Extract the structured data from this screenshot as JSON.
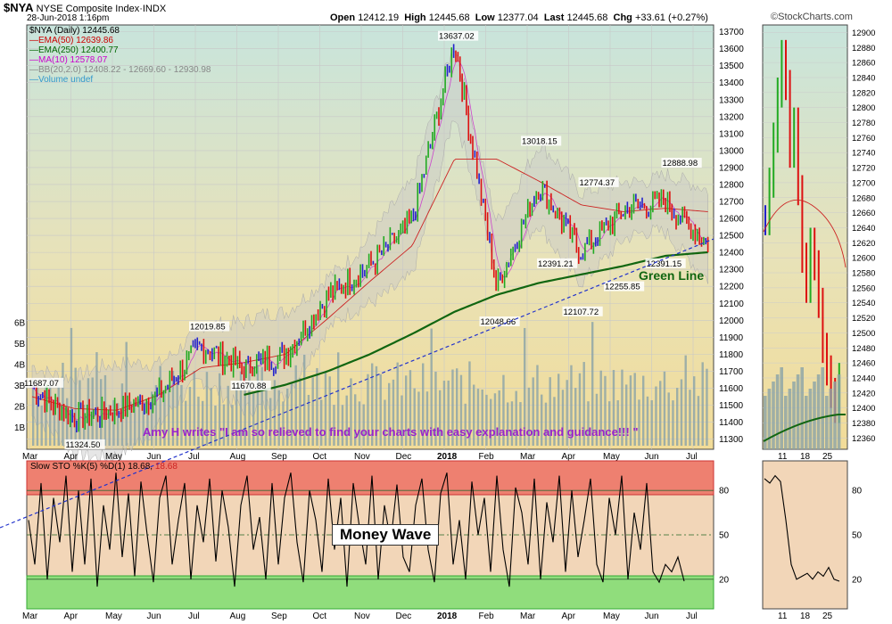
{
  "header": {
    "symbol": "$NYA",
    "name": "NYSE Composite Index",
    "exchange": "INDX",
    "datetime": "28-Jun-2018 1:16pm",
    "open_label": "Open",
    "open": "12412.19",
    "high_label": "High",
    "high": "12445.68",
    "low_label": "Low",
    "low": "12377.04",
    "last_label": "Last",
    "last": "12445.68",
    "chg_label": "Chg",
    "chg": "+33.61 (+0.27%)",
    "brand": "©StockCharts.com"
  },
  "legend": [
    {
      "text": "$NYA (Daily) 12445.68",
      "color": "#000000"
    },
    {
      "text": "EMA(50) 12639.86",
      "color": "#cc0000"
    },
    {
      "text": "EMA(250) 12400.77",
      "color": "#006600"
    },
    {
      "text": "MA(10) 12578.07",
      "color": "#cc00cc"
    },
    {
      "text": "BB(20,2.0) 12408.22 - 12669.60 - 12930.98",
      "color": "#888888"
    },
    {
      "text": "Volume undef",
      "color": "#3399cc"
    }
  ],
  "annotations": {
    "testimonial": "Amy H writes \"I am so relieved to find your charts with easy explanation and guidance!!! \"",
    "green_line": "Green Line",
    "money_wave": "Money Wave",
    "sto_label": "Slow STO %K(5) %D(1) 18.68,",
    "sto_value": "18.68"
  },
  "colors": {
    "up": "#22aa22",
    "down": "#dd1111",
    "neutral": "#2222cc",
    "ema50": "#cc2222",
    "ema250": "#116611",
    "ma10": "#cc44cc",
    "bb_fill": "#c8c8c8",
    "volume": "#8aa3a8",
    "overbought": "#f08070",
    "oversold": "#88dd77"
  },
  "chart_data": [
    {
      "type": "line",
      "title": "$NYA NYSE Composite Index (Daily)",
      "x_labels": [
        "Mar",
        "Apr",
        "May",
        "Jun",
        "Jul",
        "Aug",
        "Sep",
        "Oct",
        "Nov",
        "Dec",
        "2018",
        "Feb",
        "Mar",
        "Apr",
        "May",
        "Jun",
        "Jul"
      ],
      "y_ticks": [
        11300,
        11400,
        11500,
        11600,
        11700,
        11800,
        11900,
        12000,
        12100,
        12200,
        12300,
        12400,
        12500,
        12600,
        12700,
        12800,
        12900,
        13000,
        13100,
        13200,
        13300,
        13400,
        13500,
        13600,
        13700
      ],
      "ylim": [
        11240,
        13740
      ],
      "volume_ticks": [
        "1B",
        "2B",
        "3B",
        "4B",
        "5B",
        "6B"
      ],
      "labeled_points": [
        {
          "label": "11687.07",
          "value": 11687.07,
          "date": "Mar"
        },
        {
          "label": "11324.50",
          "value": 11324.5,
          "date": "Apr"
        },
        {
          "label": "12019.85",
          "value": 12019.85,
          "date": "Jul"
        },
        {
          "label": "11670.88",
          "value": 11670.88,
          "date": "Aug"
        },
        {
          "label": "13637.02",
          "value": 13637.02,
          "date": "Jan"
        },
        {
          "label": "12048.66",
          "value": 12048.66,
          "date": "Feb"
        },
        {
          "label": "13018.15",
          "value": 13018.15,
          "date": "Mar"
        },
        {
          "label": "12391.21",
          "value": 12391.21,
          "date": "Mar"
        },
        {
          "label": "12107.72",
          "value": 12107.72,
          "date": "Apr"
        },
        {
          "label": "12774.37",
          "value": 12774.37,
          "date": "Apr"
        },
        {
          "label": "12255.85",
          "value": 12255.85,
          "date": "May"
        },
        {
          "label": "12391.15",
          "value": 12391.15,
          "date": "Jun"
        },
        {
          "label": "12888.98",
          "value": 12888.98,
          "date": "Jun"
        }
      ],
      "series": [
        {
          "name": "$NYA",
          "months": [
            "Mar",
            "Apr",
            "May",
            "Jun",
            "Jul",
            "Aug",
            "Sep",
            "Oct",
            "Nov",
            "Dec",
            "Jan",
            "Feb",
            "Mar",
            "Apr",
            "May",
            "Jun",
            "Jun 28"
          ],
          "values": [
            11600,
            11420,
            11470,
            11560,
            11850,
            11720,
            11800,
            12140,
            12320,
            12580,
            13637,
            12200,
            12800,
            12400,
            12650,
            12700,
            12445.68
          ]
        },
        {
          "name": "EMA(50)",
          "months": [
            "Mar",
            "Apr",
            "May",
            "Jun",
            "Jul",
            "Aug",
            "Sep",
            "Oct",
            "Nov",
            "Dec",
            "Jan",
            "Feb",
            "Mar",
            "Apr",
            "May",
            "Jun",
            "Jun 28"
          ],
          "values": [
            11550,
            11480,
            11470,
            11560,
            11720,
            11750,
            11800,
            12010,
            12230,
            12440,
            12950,
            12950,
            12820,
            12680,
            12640,
            12660,
            12639.86
          ]
        },
        {
          "name": "EMA(250)",
          "months": [
            "Mar",
            "Apr",
            "May",
            "Jun",
            "Jul",
            "Aug",
            "Sep",
            "Oct",
            "Nov",
            "Dec",
            "Jan",
            "Feb",
            "Mar",
            "Apr",
            "May",
            "Jun",
            "Jun 28"
          ],
          "values": [
            null,
            null,
            null,
            null,
            null,
            11560,
            11620,
            11700,
            11800,
            11920,
            12050,
            12150,
            12220,
            12270,
            12320,
            12380,
            12400.77
          ]
        }
      ]
    },
    {
      "type": "line",
      "title": "Slow STO %K(5) %D(1)",
      "y_ticks": [
        20,
        50,
        80
      ],
      "ylim": [
        0,
        100
      ],
      "overbought": 80,
      "oversold": 20,
      "series": [
        {
          "name": "%K",
          "values": [
            60,
            30,
            85,
            20,
            75,
            45,
            90,
            25,
            80,
            30,
            88,
            15,
            70,
            40,
            92,
            35,
            78,
            22,
            86,
            50,
            18,
            75,
            90,
            30,
            60,
            85,
            20,
            70,
            45,
            88,
            32,
            80,
            55,
            15,
            70,
            90,
            40,
            62,
            20,
            85,
            30,
            75,
            92,
            45,
            18,
            80,
            60,
            25,
            88,
            40,
            75,
            15,
            85,
            55,
            30,
            90,
            20,
            70,
            45,
            84,
            35,
            25,
            70,
            88,
            40,
            18,
            78,
            92,
            30,
            60,
            20,
            86,
            50,
            75,
            25,
            90,
            40,
            15,
            82,
            65,
            30,
            88,
            20,
            72,
            45,
            90,
            25,
            80,
            35,
            60,
            88,
            30,
            18,
            75,
            50,
            90,
            20,
            65,
            40,
            85,
            25,
            18,
            30,
            25,
            35,
            18.68
          ]
        }
      ]
    }
  ]
}
